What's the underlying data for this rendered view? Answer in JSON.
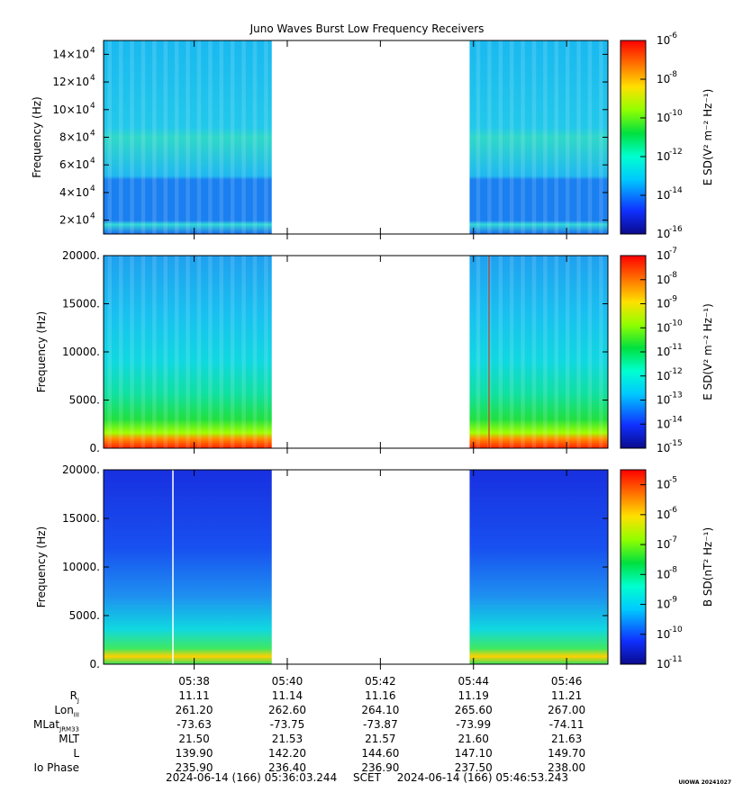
{
  "chart_data": [
    {
      "type": "heatmap",
      "title": "Juno Waves Burst Low Frequency Receivers",
      "ylabel": "Frequency (Hz)",
      "ylim": [
        10000,
        150000
      ],
      "ytick_values": [
        20000,
        40000,
        60000,
        80000,
        100000,
        120000,
        140000
      ],
      "ytick_labels": [
        "2×10",
        "4×10",
        "6×10",
        "8×10",
        "10×10",
        "12×10",
        "14×10"
      ],
      "ytick_exponent": "4",
      "colorbar_label": "E SD(V² m⁻² Hz⁻¹)",
      "colorbar_range": [
        -16,
        -6
      ],
      "colorbar_tick_exponents": [
        "-6",
        "-8",
        "-10",
        "-12",
        "-14",
        "-16"
      ],
      "colorscale": "log",
      "data_gap": [
        "05:39:40",
        "05:43:55"
      ]
    },
    {
      "type": "heatmap",
      "ylabel": "Frequency (Hz)",
      "ylim": [
        0,
        20000
      ],
      "ytick_values": [
        0,
        5000,
        10000,
        15000,
        20000
      ],
      "ytick_labels": [
        "0.",
        "5000.",
        "10000.",
        "15000.",
        "20000."
      ],
      "colorbar_label": "E SD(V² m⁻² Hz⁻¹)",
      "colorbar_range": [
        -15,
        -7
      ],
      "colorbar_tick_exponents": [
        "-7",
        "-8",
        "-9",
        "-10",
        "-11",
        "-12",
        "-13",
        "-14",
        "-15"
      ],
      "colorscale": "log",
      "data_gap": [
        "05:39:40",
        "05:43:55"
      ]
    },
    {
      "type": "heatmap",
      "ylabel": "Frequency (Hz)",
      "ylim": [
        0,
        20000
      ],
      "ytick_values": [
        0,
        5000,
        10000,
        15000,
        20000
      ],
      "ytick_labels": [
        "0.",
        "5000.",
        "10000.",
        "15000.",
        "20000."
      ],
      "colorbar_label": "B SD(nT² Hz⁻¹)",
      "colorbar_range": [
        -11,
        -4.5
      ],
      "colorbar_tick_exponents": [
        "-5",
        "-6",
        "-7",
        "-8",
        "-9",
        "-10",
        "-11"
      ],
      "colorscale": "log",
      "data_gap": [
        "05:39:40",
        "05:43:55"
      ]
    }
  ],
  "time_axis": {
    "ticks": [
      "05:38",
      "05:40",
      "05:42",
      "05:44",
      "05:46"
    ],
    "start": "05:36:03.244",
    "end": "05:46:53.243"
  },
  "ephemeris": {
    "rows": [
      {
        "label": "R",
        "sub": "J",
        "values": [
          "11.11",
          "11.14",
          "11.16",
          "11.19",
          "11.21"
        ]
      },
      {
        "label": "Lon",
        "sub": "III",
        "values": [
          "261.20",
          "262.60",
          "264.10",
          "265.60",
          "267.00"
        ]
      },
      {
        "label": "MLat",
        "sub": "JRM33",
        "values": [
          "-73.63",
          "-73.75",
          "-73.87",
          "-73.99",
          "-74.11"
        ]
      },
      {
        "label": "MLT",
        "sub": "",
        "values": [
          "21.50",
          "21.53",
          "21.57",
          "21.60",
          "21.63"
        ]
      },
      {
        "label": "L",
        "sub": "",
        "values": [
          "139.90",
          "142.20",
          "144.60",
          "147.10",
          "149.70"
        ]
      },
      {
        "label": "Io Phase",
        "sub": "",
        "values": [
          "235.90",
          "236.40",
          "236.90",
          "237.50",
          "238.00"
        ]
      }
    ]
  },
  "footer": {
    "start": "2024-06-14 (166) 05:36:03.244",
    "scet": "SCET",
    "end": "2024-06-14 (166) 05:46:53.243"
  },
  "stamp": "UIOWA 20241027"
}
